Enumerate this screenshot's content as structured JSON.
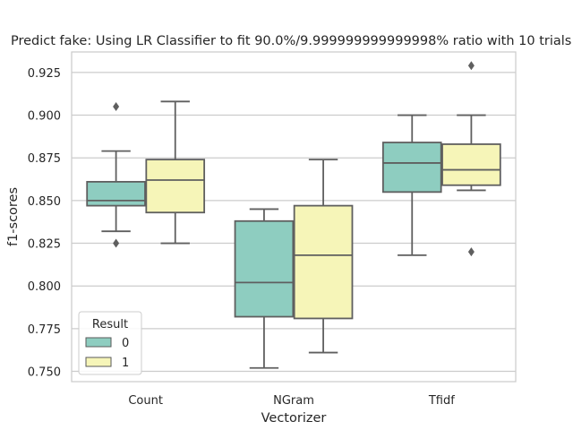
{
  "chart_data": {
    "type": "boxplot",
    "title": "Predict fake: Using LR Classifier to fit 90.0%/9.999999999999998% ratio with 10 trials",
    "xlabel": "Vectorizer",
    "ylabel": "f1-scores",
    "categories": [
      "Count",
      "NGram",
      "Tfidf"
    ],
    "ylim": [
      0.744,
      0.937
    ],
    "yticks": [
      0.75,
      0.775,
      0.8,
      0.825,
      0.85,
      0.875,
      0.9,
      0.925
    ],
    "ytick_labels": [
      "0.750",
      "0.775",
      "0.800",
      "0.825",
      "0.850",
      "0.875",
      "0.900",
      "0.925"
    ],
    "grid": "horizontal",
    "legend": {
      "title": "Result",
      "placement": "lower-left"
    },
    "series": [
      {
        "name": "0",
        "color": "#8ecdc0",
        "boxes": [
          {
            "whisker_low": 0.832,
            "q1": 0.847,
            "median": 0.85,
            "q3": 0.861,
            "whisker_high": 0.879,
            "outliers": [
              0.905,
              0.825
            ]
          },
          {
            "whisker_low": 0.752,
            "q1": 0.782,
            "median": 0.802,
            "q3": 0.838,
            "whisker_high": 0.845,
            "outliers": []
          },
          {
            "whisker_low": 0.818,
            "q1": 0.855,
            "median": 0.872,
            "q3": 0.884,
            "whisker_high": 0.9,
            "outliers": []
          }
        ]
      },
      {
        "name": "1",
        "color": "#f6f5b8",
        "boxes": [
          {
            "whisker_low": 0.825,
            "q1": 0.843,
            "median": 0.862,
            "q3": 0.874,
            "whisker_high": 0.908,
            "outliers": []
          },
          {
            "whisker_low": 0.761,
            "q1": 0.781,
            "median": 0.818,
            "q3": 0.847,
            "whisker_high": 0.874,
            "outliers": []
          },
          {
            "whisker_low": 0.856,
            "q1": 0.859,
            "median": 0.868,
            "q3": 0.883,
            "whisker_high": 0.9,
            "outliers": [
              0.929,
              0.82
            ]
          }
        ]
      }
    ]
  }
}
